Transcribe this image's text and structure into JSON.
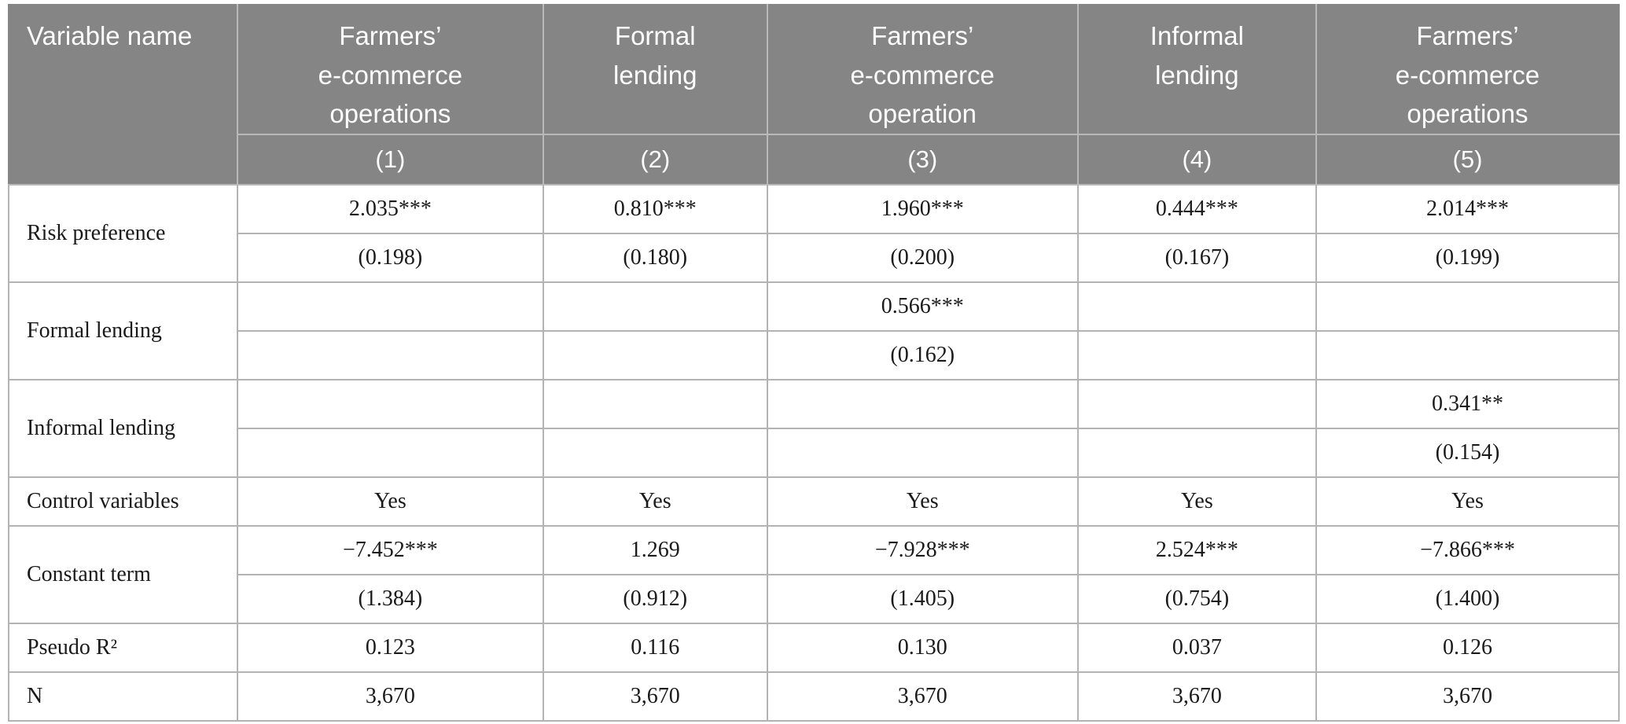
{
  "colors": {
    "header_background": "#858585",
    "header_text": "#fdfdfd",
    "body_text": "#1a1a1a",
    "grid_border": "#b3b3b3"
  },
  "header": {
    "variable_name": "Variable name",
    "columns": [
      {
        "title": "Farmers’\ne-commerce\noperations",
        "model_number": "(1)"
      },
      {
        "title": "Formal\nlending",
        "model_number": "(2)"
      },
      {
        "title": "Farmers’\ne-commerce\noperation",
        "model_number": "(3)"
      },
      {
        "title": "Informal\nlending",
        "model_number": "(4)"
      },
      {
        "title": "Farmers’\ne-commerce\noperations",
        "model_number": "(5)"
      }
    ]
  },
  "groups": [
    {
      "label": "Risk preference",
      "coef": [
        "2.035***",
        "0.810***",
        "1.960***",
        "0.444***",
        "2.014***"
      ],
      "se": [
        "(0.198)",
        "(0.180)",
        "(0.200)",
        "(0.167)",
        "(0.199)"
      ]
    },
    {
      "label": "Formal lending",
      "coef": [
        "",
        "",
        "0.566***",
        "",
        ""
      ],
      "se": [
        "",
        "",
        "(0.162)",
        "",
        ""
      ]
    },
    {
      "label": "Informal lending",
      "coef": [
        "",
        "",
        "",
        "",
        "0.341**"
      ],
      "se": [
        "",
        "",
        "",
        "",
        "(0.154)"
      ]
    },
    {
      "label": "Control variables",
      "values": [
        "Yes",
        "Yes",
        "Yes",
        "Yes",
        "Yes"
      ]
    },
    {
      "label": "Constant term",
      "coef": [
        "−7.452***",
        "1.269",
        "−7.928***",
        "2.524***",
        "−7.866***"
      ],
      "se": [
        "(1.384)",
        "(0.912)",
        "(1.405)",
        "(0.754)",
        "(1.400)"
      ]
    },
    {
      "label": "Pseudo R²",
      "values": [
        "0.123",
        "0.116",
        "0.130",
        "0.037",
        "0.126"
      ]
    },
    {
      "label": "N",
      "values": [
        "3,670",
        "3,670",
        "3,670",
        "3,670",
        "3,670"
      ]
    }
  ]
}
